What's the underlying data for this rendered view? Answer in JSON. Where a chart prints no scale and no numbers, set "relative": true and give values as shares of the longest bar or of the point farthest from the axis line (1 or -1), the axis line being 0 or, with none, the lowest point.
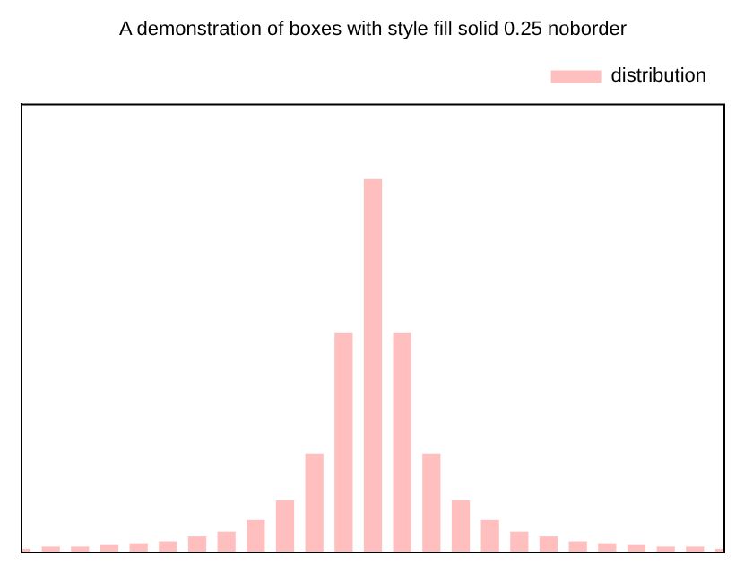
{
  "chart_data": {
    "type": "bar",
    "title": "A demonstration of boxes with style fill solid 0.25 noborder",
    "relative": true,
    "legend": "top right",
    "grid": false,
    "categories": [
      null,
      null,
      null,
      null,
      null,
      null,
      null,
      null,
      null,
      null,
      null,
      null,
      null,
      null,
      null,
      null,
      null,
      null,
      null,
      null,
      null,
      null,
      null,
      null,
      null
    ],
    "series": [
      {
        "name": "distribution",
        "color": "#ffbfbf",
        "values": [
          0.01,
          0.016,
          0.016,
          0.02,
          0.025,
          0.03,
          0.043,
          0.056,
          0.087,
          0.14,
          0.265,
          0.589,
          1,
          0.589,
          0.265,
          0.14,
          0.087,
          0.056,
          0.043,
          0.03,
          0.025,
          0.02,
          0.016,
          0.016,
          0.01
        ]
      }
    ]
  }
}
